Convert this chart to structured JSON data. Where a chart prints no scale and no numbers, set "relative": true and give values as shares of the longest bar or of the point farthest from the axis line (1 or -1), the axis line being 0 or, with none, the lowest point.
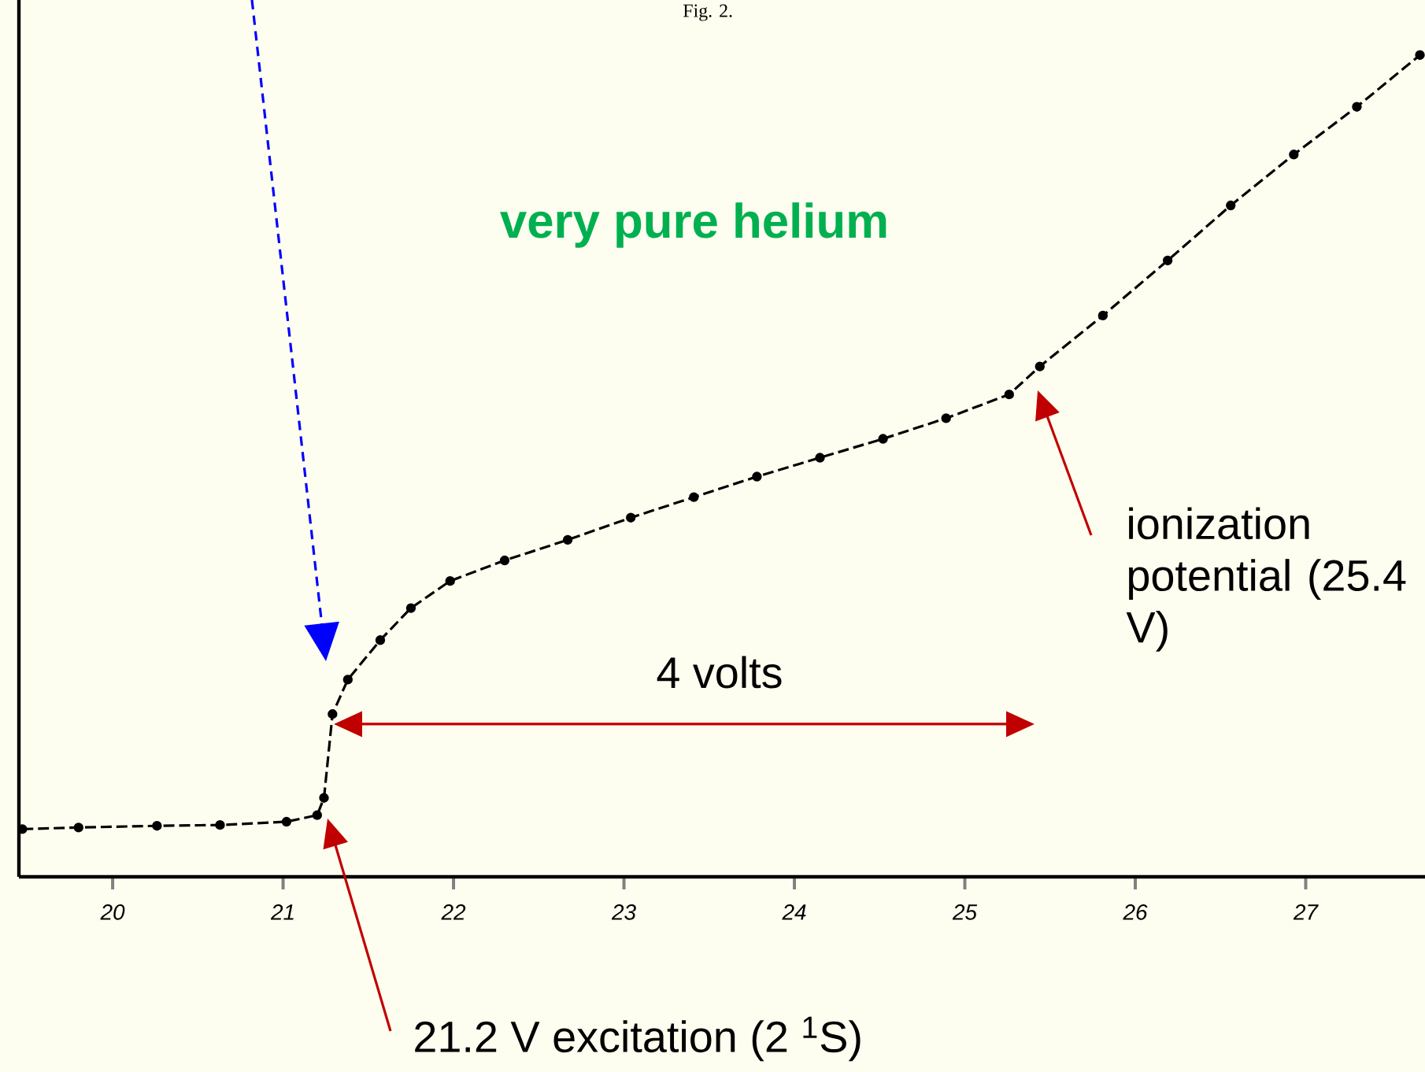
{
  "chart_data": {
    "type": "line",
    "title": "Fig. 2.",
    "color": "#000000",
    "relative": true,
    "marker": "circle",
    "line_style": "dashed",
    "x": [
      19.47,
      19.8,
      20.26,
      20.63,
      21.02,
      21.2,
      21.24,
      21.29,
      21.38,
      21.57,
      21.75,
      21.98,
      22.3,
      22.67,
      23.04,
      23.41,
      23.78,
      24.15,
      24.52,
      24.89,
      25.26,
      25.44,
      25.81,
      26.19,
      26.56,
      26.93,
      27.3,
      27.67
    ],
    "values": [
      0.058,
      0.06,
      0.062,
      0.063,
      0.067,
      0.075,
      0.096,
      0.198,
      0.24,
      0.288,
      0.327,
      0.36,
      0.385,
      0.41,
      0.437,
      0.462,
      0.487,
      0.51,
      0.533,
      0.558,
      0.587,
      0.621,
      0.683,
      0.75,
      0.817,
      0.879,
      0.937,
      1
    ],
    "xlim": [
      19.45,
      27.7
    ],
    "xticks": [
      20,
      21,
      22,
      23,
      24,
      25,
      26,
      27
    ],
    "annotations": [
      "very pure helium",
      "4 volts",
      "ionization potential (25.4 V)",
      "21.2 V excitation (2 $^{1}$S)"
    ]
  }
}
